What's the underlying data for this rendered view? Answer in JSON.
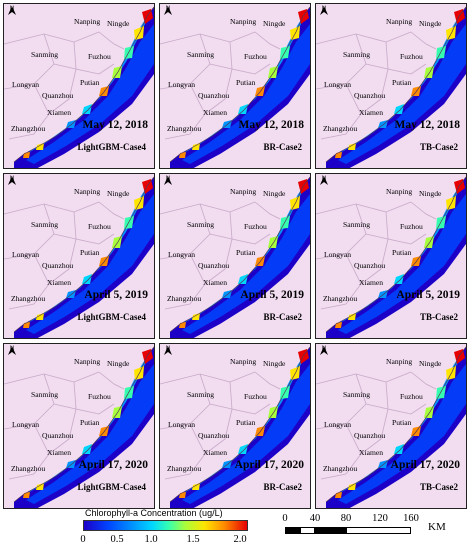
{
  "rows": [
    {
      "date": "May 12, 2018",
      "methods": [
        "LightGBM-Case4",
        "BR-Case2",
        "TB-Case2"
      ]
    },
    {
      "date": "April 5, 2019",
      "methods": [
        "LightGBM-Case4",
        "BR-Case2",
        "TB-Case2"
      ]
    },
    {
      "date": "April 17, 2020",
      "methods": [
        "LightGBM-Case4",
        "BR-Case2",
        "TB-Case2"
      ]
    }
  ],
  "cities": [
    "Nanping",
    "Ningde",
    "Sanming",
    "Fuzhou",
    "Putian",
    "Longyan",
    "Quanzhou",
    "Xiamen",
    "Zhangzhou"
  ],
  "north_arrow_label": "N",
  "legend": {
    "title": "Chlorophyll-a Concentration (ug/L)",
    "ticks": [
      "0",
      "0.5",
      "1.0",
      "1.5",
      "2.0"
    ],
    "colors": [
      "#1d00c8",
      "#0045ff",
      "#0094ff",
      "#00d7ff",
      "#36ffb0",
      "#a8ff3c",
      "#ffe500",
      "#ff8c00",
      "#e60000"
    ]
  },
  "scale_bar": {
    "ticks": [
      "0",
      "40",
      "80",
      "120",
      "160"
    ],
    "unit": "KM"
  },
  "colors": {
    "land": "#f1dcf0",
    "boundary": "#c8aac8",
    "panel_border": "#222222"
  }
}
